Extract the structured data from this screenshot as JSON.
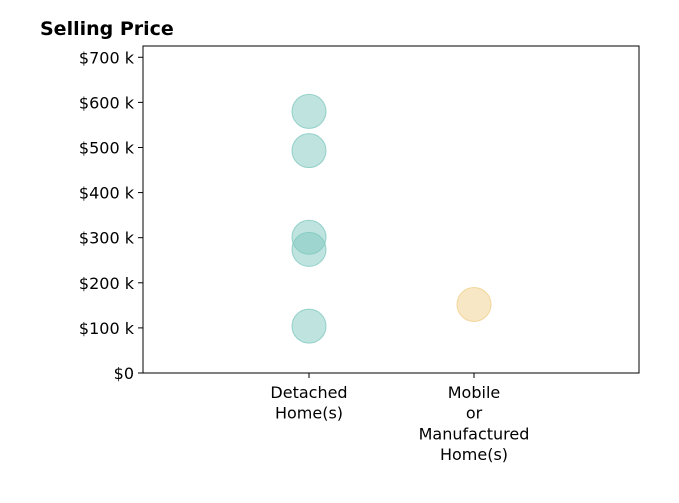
{
  "chart_data": {
    "type": "scatter",
    "title": "Selling Price",
    "categories": [
      "Detached\nHome(s)",
      "Mobile\nor\nManufactured\nHome(s)"
    ],
    "ylim": [
      0,
      725
    ],
    "yticks": [
      0,
      100,
      200,
      300,
      400,
      500,
      600,
      700
    ],
    "ytick_labels": [
      "$0",
      "$100 k",
      "$200 k",
      "$300 k",
      "$400 k",
      "$500 k",
      "$600 k",
      "$700 k"
    ],
    "grid": false,
    "series": [
      {
        "category_index": 0,
        "color": "#7fc8bf",
        "values": [
          580,
          493,
          301,
          274,
          104
        ]
      },
      {
        "category_index": 1,
        "color": "#f0cf8a",
        "values": [
          152
        ]
      }
    ]
  }
}
